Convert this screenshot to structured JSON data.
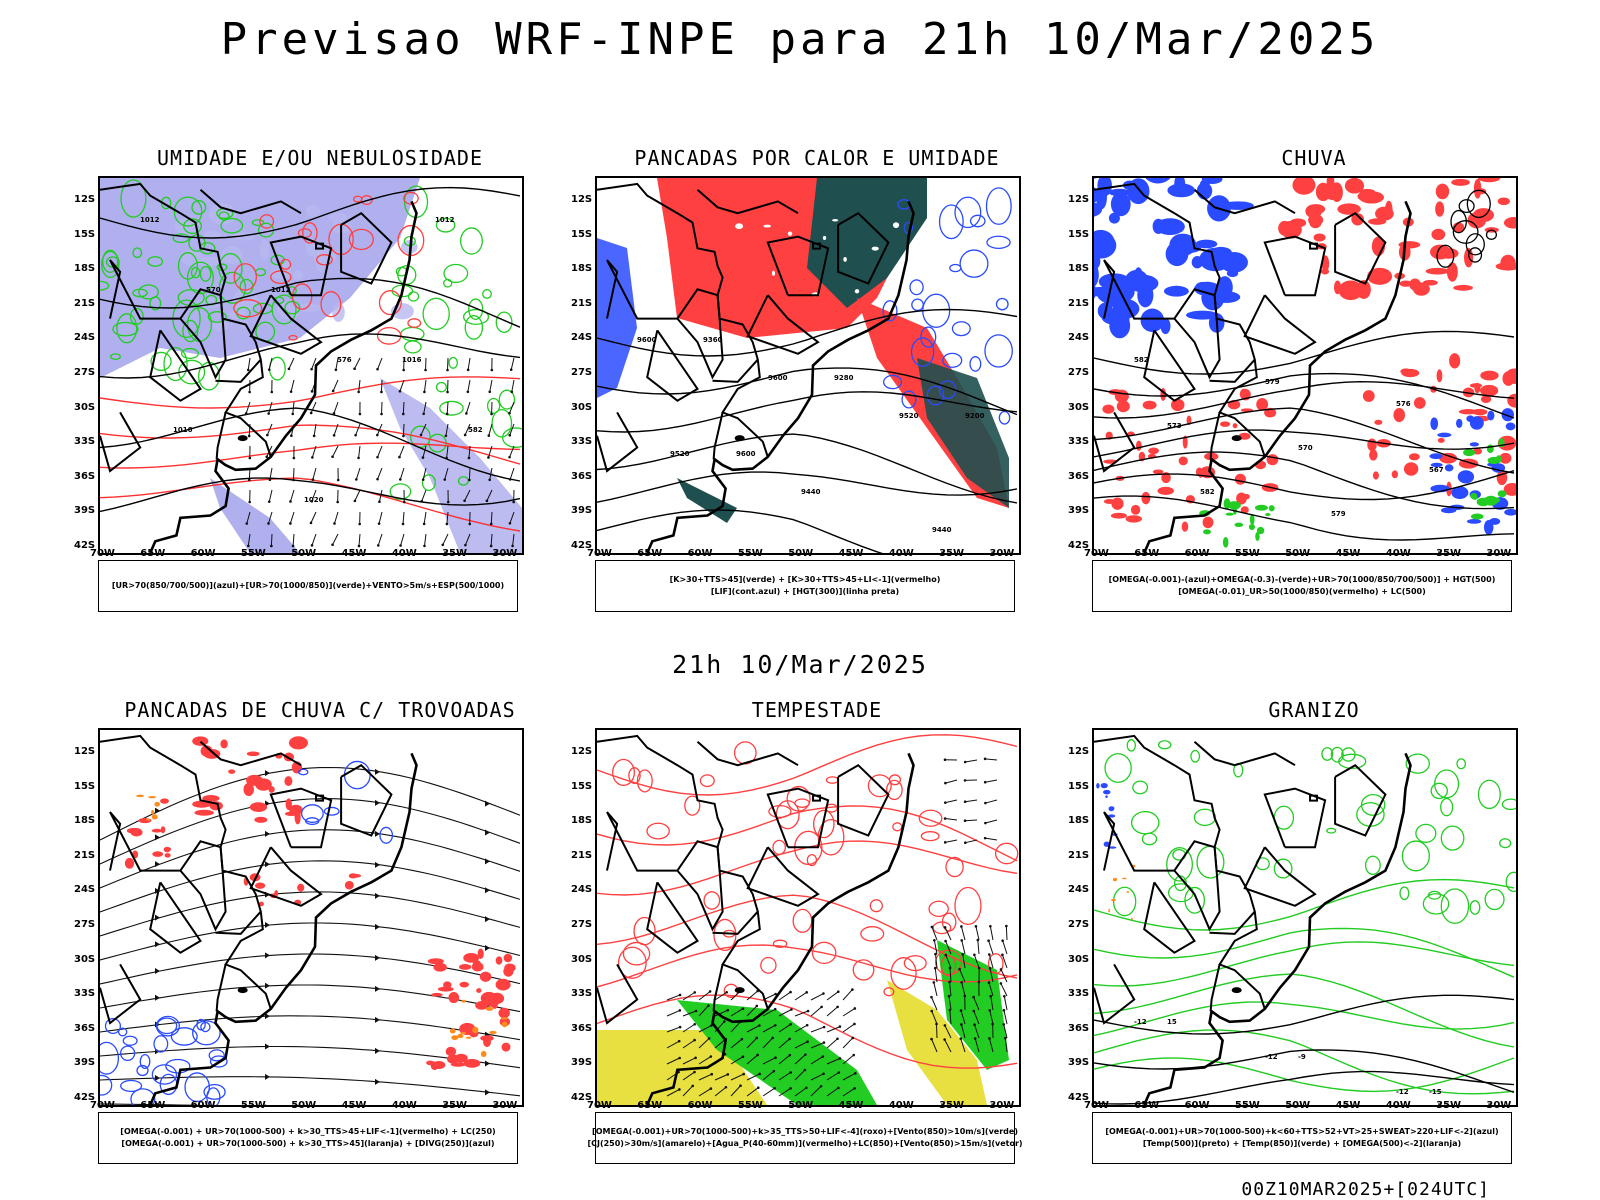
{
  "title": "Previsao WRF-INPE  para 21h 10/Mar/2025",
  "subtitle": "21h 10/Mar/2025",
  "footer": "00Z10MAR2025+[024UTC]",
  "lat_labels": [
    "12S",
    "15S",
    "18S",
    "21S",
    "24S",
    "27S",
    "30S",
    "33S",
    "36S",
    "39S",
    "42S"
  ],
  "lon_labels": [
    "70W",
    "65W",
    "60W",
    "55W",
    "50W",
    "45W",
    "40W",
    "35W",
    "30W"
  ],
  "colors": {
    "blue_humidity": "#8f8fe8",
    "green": "#22cc22",
    "red": "#ff4040",
    "dark_teal": "#1f4f4f",
    "blue": "#2a4bff",
    "orange": "#ff8c1a",
    "yellow": "#e8e040"
  },
  "panels": [
    {
      "id": "umidade",
      "title": "UMIDADE E/OU NEBULOSIDADE",
      "legend": [
        "[UR>70(850/700/500)](azul)+[UR>70(1000/850)](verde)+VENTO>5m/s+ESP(500/1000)"
      ],
      "contour_labels": [
        "1012",
        "1012",
        "1016",
        "1016",
        "1020",
        "1012",
        "570",
        "576",
        "582"
      ]
    },
    {
      "id": "pancadas_calor",
      "title": "PANCADAS POR CALOR E UMIDADE",
      "legend": [
        "[K>30+TTS>45](verde) + [K>30+TTS>45+LI<-1](vermelho)",
        "[LIF](cont.azul) + [HGT(300)](linha preta)"
      ],
      "contour_labels": [
        "9600",
        "9600",
        "9520",
        "9520",
        "9440",
        "9440",
        "9360",
        "9280",
        "9200",
        "9600"
      ]
    },
    {
      "id": "chuva",
      "title": "CHUVA",
      "legend": [
        "[OMEGA(-0.001)-(azul)+OMEGA(-0.3)-(verde)+UR>70(1000/850/700/500)] + HGT(500)",
        "[OMEGA(-0.01)_UR>50(1000/850)(vermelho) + LC(500)"
      ],
      "contour_labels": [
        "582",
        "579",
        "576",
        "573",
        "570",
        "567",
        "582",
        "579"
      ]
    },
    {
      "id": "trovoadas",
      "title": "PANCADAS DE CHUVA C/ TROVOADAS",
      "legend": [
        "[OMEGA(-0.001) + UR>70(1000-500) + k>30_TTS>45+LIF<-1](vermelho) + LC(250)",
        "[OMEGA(-0.001) + UR>70(1000-500) + k>30_TTS>45](laranja) + [DIVG(250)](azul)"
      ]
    },
    {
      "id": "tempestade",
      "title": "TEMPESTADE",
      "legend": [
        "[OMEGA(-0.001)+UR>70(1000-500)+k>35_TTS>50+LIF<-4](roxo)+[Vento(850)>10m/s](verde)",
        "[CJ(250)>30m/s](amarelo)+[Agua_P(40-60mm)](vermelho)+LC(850)+[Vento(850)>15m/s](vetor)"
      ]
    },
    {
      "id": "granizo",
      "title": "GRANIZO",
      "legend": [
        "[OMEGA(-0.001)+UR>70(1000-500)+k<60+TTS>52+VT>25+SWEAT>220+LIF<-2](azul)",
        "[Temp(500)](preto) + [Temp(850)](verde) + [OMEGA(500)<-2](laranja)"
      ],
      "contour_labels": [
        "-12",
        "-12",
        "-12",
        "15",
        "-9",
        "-15"
      ]
    }
  ]
}
